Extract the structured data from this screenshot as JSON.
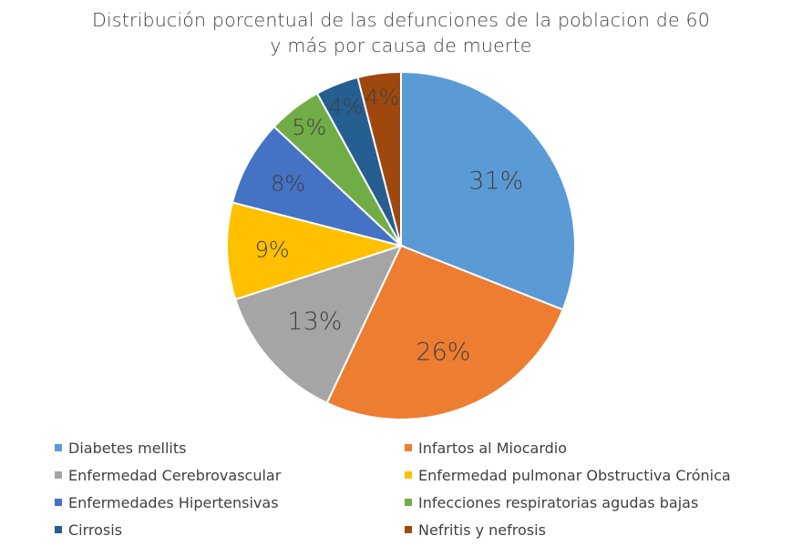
{
  "chart_data": {
    "type": "pie",
    "title": [
      "Distribución porcentual de las defunciones de la poblacion de 60",
      "y más por causa de muerte"
    ],
    "slices": [
      {
        "label": "Diabetes mellits",
        "value": 31,
        "display": "31%",
        "color": "#5B9BD5"
      },
      {
        "label": "Infartos al Miocardio",
        "value": 26,
        "display": "26%",
        "color": "#ED7D31"
      },
      {
        "label": "Enfermedad Cerebrovascular",
        "value": 13,
        "display": "13%",
        "color": "#A5A5A5"
      },
      {
        "label": "Enfermedad pulmonar Obstructiva Crónica",
        "value": 9,
        "display": "9%",
        "color": "#FFC000"
      },
      {
        "label": "Enfermedades Hipertensivas",
        "value": 8,
        "display": "8%",
        "color": "#4472C4"
      },
      {
        "label": "Infecciones respiratorias agudas bajas",
        "value": 5,
        "display": "5%",
        "color": "#70AD47"
      },
      {
        "label": "Cirrosis",
        "value": 4,
        "display": "4%",
        "color": "#255E91"
      },
      {
        "label": "Nefritis y nefrosis",
        "value": 4,
        "display": "4%",
        "color": "#9E480E"
      }
    ],
    "legend_position": "bottom"
  }
}
